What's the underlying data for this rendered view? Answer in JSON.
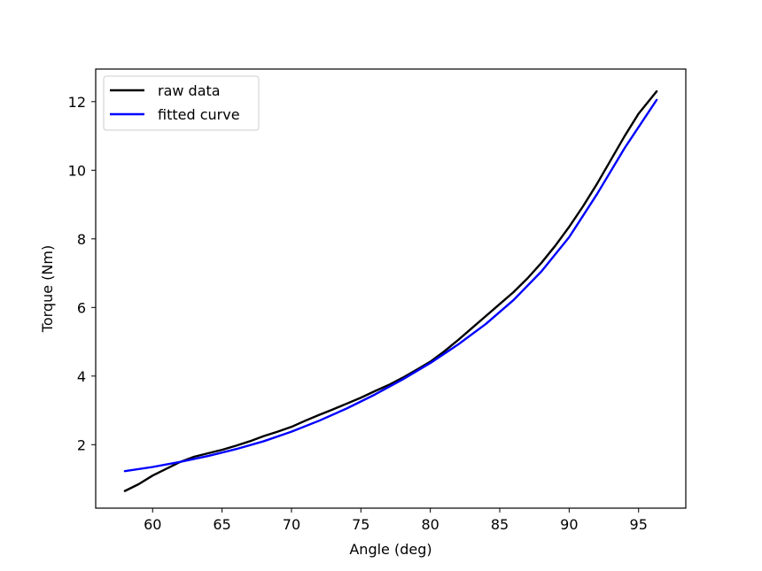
{
  "chart_data": {
    "type": "line",
    "title": "",
    "xlabel": "Angle (deg)",
    "ylabel": "Torque (Nm)",
    "xlim": [
      55.9,
      98.4
    ],
    "ylim": [
      0.15,
      12.95
    ],
    "xticks": [
      60,
      65,
      70,
      75,
      80,
      85,
      90,
      95
    ],
    "yticks": [
      2,
      4,
      6,
      8,
      10,
      12
    ],
    "grid": false,
    "legend_position": "upper-left",
    "series": [
      {
        "name": "raw data",
        "color": "#000000",
        "x": [
          58.0,
          59.0,
          60.0,
          61.0,
          62.0,
          63.0,
          64.0,
          65.0,
          66.0,
          67.0,
          68.0,
          69.0,
          70.0,
          71.0,
          72.0,
          73.0,
          74.0,
          75.0,
          76.0,
          77.0,
          78.0,
          79.0,
          80.0,
          81.0,
          82.0,
          83.0,
          84.0,
          85.0,
          86.0,
          87.0,
          88.0,
          89.0,
          90.0,
          91.0,
          92.0,
          93.0,
          94.0,
          95.0,
          96.0,
          96.3
        ],
        "y": [
          0.65,
          0.85,
          1.1,
          1.3,
          1.5,
          1.65,
          1.75,
          1.85,
          1.97,
          2.1,
          2.25,
          2.38,
          2.52,
          2.7,
          2.87,
          3.03,
          3.2,
          3.37,
          3.56,
          3.74,
          3.95,
          4.18,
          4.42,
          4.72,
          5.05,
          5.4,
          5.75,
          6.1,
          6.45,
          6.85,
          7.3,
          7.8,
          8.35,
          8.95,
          9.6,
          10.3,
          11.0,
          11.65,
          12.15,
          12.3
        ]
      },
      {
        "name": "fitted curve",
        "color": "#0000ff",
        "x": [
          58.0,
          60.0,
          62.0,
          64.0,
          66.0,
          68.0,
          70.0,
          72.0,
          74.0,
          76.0,
          78.0,
          80.0,
          82.0,
          84.0,
          86.0,
          88.0,
          90.0,
          92.0,
          94.0,
          96.3
        ],
        "y": [
          1.23,
          1.35,
          1.5,
          1.67,
          1.87,
          2.1,
          2.38,
          2.7,
          3.06,
          3.46,
          3.9,
          4.38,
          4.92,
          5.52,
          6.22,
          7.05,
          8.05,
          9.3,
          10.65,
          12.05
        ]
      }
    ]
  }
}
